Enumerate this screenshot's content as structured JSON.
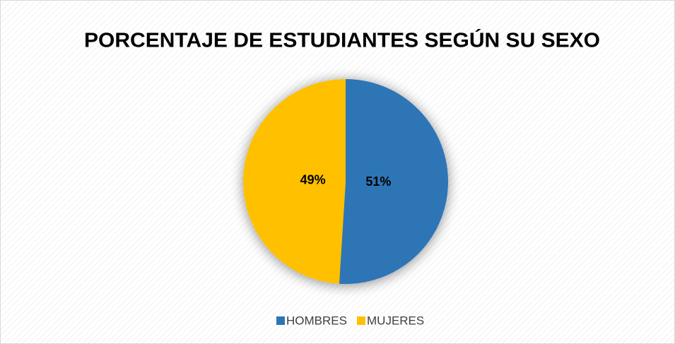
{
  "chart_data": {
    "type": "pie",
    "title": "PORCENTAJE DE ESTUDIANTES SEGÚN SU SEXO",
    "categories": [
      "HOMBRES",
      "MUJERES"
    ],
    "values": [
      51,
      49
    ],
    "value_labels": [
      "51%",
      "49%"
    ],
    "colors": [
      "#2e75b6",
      "#ffc000"
    ],
    "legend": "bottom"
  }
}
